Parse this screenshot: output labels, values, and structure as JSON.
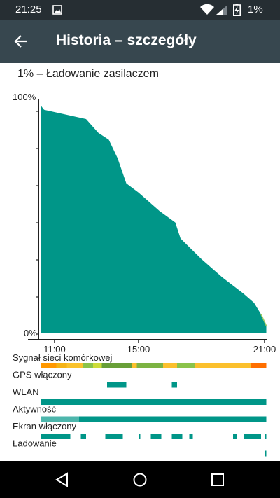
{
  "status_bar": {
    "time": "21:25",
    "battery_text": "1%",
    "icons": [
      "image-icon",
      "wifi-icon",
      "cell-signal-icon",
      "battery-charging-icon"
    ]
  },
  "app_bar": {
    "title": "Historia – szczegóły",
    "back_icon": "arrow-left-icon"
  },
  "battery_summary": "1% – Ładowanie zasilaczem",
  "chart_data": {
    "type": "area",
    "y_axis_labels": [
      "100%",
      "0%"
    ],
    "x_tick_labels": [
      "11:00",
      "15:00",
      "21:00"
    ],
    "ylim": [
      0,
      100
    ],
    "xlim_hours": [
      10.3,
      21.1
    ],
    "x_ticks_hours": [
      11,
      15,
      21
    ],
    "grid": false,
    "fill_color": "#009688",
    "charging_color": "#9ccc65",
    "series": [
      {
        "values": [
          {
            "x": "10:20",
            "y": 99
          },
          {
            "x": "10:30",
            "y": 97
          },
          {
            "x": "11:30",
            "y": 95
          },
          {
            "x": "12:30",
            "y": 93
          },
          {
            "x": "13:05",
            "y": 87
          },
          {
            "x": "13:35",
            "y": 84
          },
          {
            "x": "14:00",
            "y": 76
          },
          {
            "x": "14:25",
            "y": 65
          },
          {
            "x": "15:00",
            "y": 61
          },
          {
            "x": "16:00",
            "y": 53
          },
          {
            "x": "16:45",
            "y": 48
          },
          {
            "x": "17:00",
            "y": 41
          },
          {
            "x": "18:00",
            "y": 32
          },
          {
            "x": "19:00",
            "y": 24
          },
          {
            "x": "20:00",
            "y": 17
          },
          {
            "x": "20:30",
            "y": 13
          },
          {
            "x": "20:50",
            "y": 8
          },
          {
            "x": "21:00",
            "y": 5
          },
          {
            "x": "21:05",
            "y": 3
          }
        ]
      }
    ],
    "tracks": [
      {
        "label": "Sygnał sieci komórkowej",
        "segments": [
          {
            "from": "10:20",
            "to": "11:05",
            "color": "#ff9800"
          },
          {
            "from": "11:05",
            "to": "11:35",
            "color": "#f5b316"
          },
          {
            "from": "11:35",
            "to": "12:20",
            "color": "#f9c22c"
          },
          {
            "from": "12:20",
            "to": "12:50",
            "color": "#8bc34a"
          },
          {
            "from": "12:50",
            "to": "13:15",
            "color": "#cddc39"
          },
          {
            "from": "13:15",
            "to": "14:40",
            "color": "#689f38"
          },
          {
            "from": "14:40",
            "to": "14:55",
            "color": "#fbc02d"
          },
          {
            "from": "14:55",
            "to": "16:10",
            "color": "#7cb342"
          },
          {
            "from": "16:10",
            "to": "16:50",
            "color": "#fbc02d"
          },
          {
            "from": "16:50",
            "to": "17:40",
            "color": "#8bc34a"
          },
          {
            "from": "17:40",
            "to": "20:20",
            "color": "#fbc02d"
          },
          {
            "from": "20:20",
            "to": "21:05",
            "color": "#ff6f00"
          }
        ]
      },
      {
        "label": "GPS włączony",
        "segments": [
          {
            "from": "13:30",
            "to": "14:25",
            "color": "#009688"
          },
          {
            "from": "16:35",
            "to": "16:50",
            "color": "#009688"
          }
        ]
      },
      {
        "label": "WLAN",
        "segments": [
          {
            "from": "10:20",
            "to": "21:05",
            "color": "#009688"
          }
        ]
      },
      {
        "label": "Aktywność",
        "segments": [
          {
            "from": "10:20",
            "to": "12:10",
            "color": "#4db6ac"
          },
          {
            "from": "12:10",
            "to": "21:05",
            "color": "#009688"
          }
        ]
      },
      {
        "label": "Ekran włączony",
        "segments": [
          {
            "from": "10:20",
            "to": "11:45",
            "color": "#009688"
          },
          {
            "from": "12:15",
            "to": "12:30",
            "color": "#009688"
          },
          {
            "from": "13:25",
            "to": "14:15",
            "color": "#009688"
          },
          {
            "from": "15:00",
            "to": "15:05",
            "color": "#009688"
          },
          {
            "from": "15:35",
            "to": "16:05",
            "color": "#009688"
          },
          {
            "from": "16:35",
            "to": "17:05",
            "color": "#009688"
          },
          {
            "from": "17:25",
            "to": "17:35",
            "color": "#009688"
          },
          {
            "from": "19:30",
            "to": "19:40",
            "color": "#009688"
          },
          {
            "from": "20:00",
            "to": "20:50",
            "color": "#009688"
          },
          {
            "from": "21:00",
            "to": "21:05",
            "color": "#009688"
          }
        ]
      },
      {
        "label": "Ładowanie",
        "segments": [
          {
            "from": "21:00",
            "to": "21:05",
            "color": "#009688"
          }
        ]
      }
    ]
  },
  "nav_bar": {
    "back_icon": "nav-back-triangle-icon",
    "home_icon": "nav-home-circle-icon",
    "recents_icon": "nav-recents-square-icon"
  }
}
